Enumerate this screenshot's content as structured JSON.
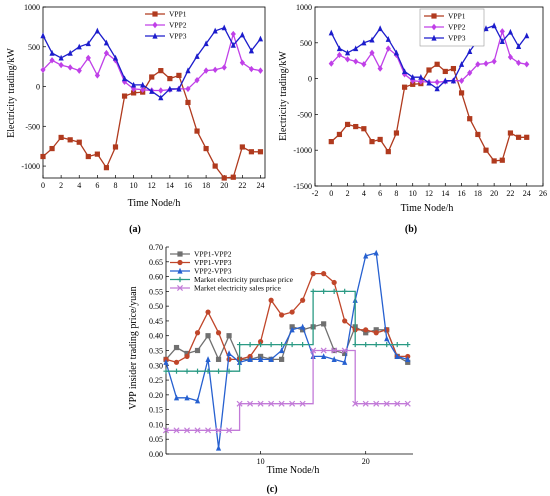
{
  "chart_data": [
    {
      "type": "line",
      "panel_label": "(a)",
      "xlabel": "Time Node/h",
      "ylabel": "Electricity trading/kW",
      "xlim": [
        0,
        24.5
      ],
      "ylim": [
        -1150,
        1000
      ],
      "xticks": [
        0,
        2,
        4,
        6,
        8,
        10,
        12,
        14,
        16,
        18,
        20,
        22,
        24
      ],
      "yticks": [
        -1000,
        -500,
        0,
        500,
        1000
      ],
      "legend_position": "top-center",
      "x": [
        0,
        1,
        2,
        3,
        4,
        5,
        6,
        7,
        8,
        9,
        10,
        11,
        12,
        13,
        14,
        15,
        16,
        17,
        18,
        19,
        20,
        21,
        22,
        23,
        24
      ],
      "series": [
        {
          "name": "VPP1",
          "color": "#b03a1e",
          "marker": "square",
          "values": [
            -880,
            -780,
            -640,
            -670,
            -700,
            -880,
            -850,
            -1020,
            -760,
            -120,
            -80,
            -70,
            120,
            200,
            100,
            140,
            -200,
            -560,
            -780,
            -1000,
            -1150,
            -1140,
            -760,
            -820,
            -820
          ]
        },
        {
          "name": "VPP2",
          "color": "#c040e8",
          "marker": "diamond",
          "values": [
            210,
            330,
            270,
            240,
            200,
            360,
            140,
            420,
            330,
            60,
            -30,
            -40,
            -50,
            -50,
            -40,
            -30,
            -30,
            80,
            200,
            210,
            240,
            660,
            300,
            220,
            200
          ]
        },
        {
          "name": "VPP3",
          "color": "#1c1ccc",
          "marker": "triangle",
          "values": [
            640,
            420,
            360,
            420,
            500,
            540,
            700,
            550,
            360,
            100,
            20,
            20,
            -60,
            -140,
            -30,
            -30,
            200,
            380,
            540,
            700,
            740,
            520,
            650,
            450,
            600
          ]
        }
      ]
    },
    {
      "type": "line",
      "panel_label": "(b)",
      "xlabel": "Time Node/h",
      "ylabel": "Electricity trading/kW",
      "xlim": [
        -2,
        26
      ],
      "ylim": [
        -1500,
        1000
      ],
      "xticks": [
        -2,
        0,
        2,
        4,
        6,
        8,
        10,
        12,
        14,
        16,
        18,
        20,
        22,
        24,
        26
      ],
      "yticks": [
        -1500,
        -1000,
        -500,
        0,
        500,
        1000
      ],
      "legend_position": "top-right",
      "x": [
        0,
        1,
        2,
        3,
        4,
        5,
        6,
        7,
        8,
        9,
        10,
        11,
        12,
        13,
        14,
        15,
        16,
        17,
        18,
        19,
        20,
        21,
        22,
        23,
        24
      ],
      "series": [
        {
          "name": "VPP1",
          "color": "#b03a1e",
          "marker": "square",
          "values": [
            -880,
            -780,
            -640,
            -670,
            -700,
            -880,
            -850,
            -1020,
            -760,
            -120,
            -80,
            -70,
            120,
            200,
            100,
            140,
            -200,
            -560,
            -780,
            -1000,
            -1150,
            -1140,
            -760,
            -820,
            -820
          ]
        },
        {
          "name": "VPP2",
          "color": "#c040e8",
          "marker": "diamond",
          "values": [
            210,
            330,
            270,
            240,
            200,
            360,
            140,
            420,
            330,
            60,
            -30,
            -40,
            -50,
            -50,
            -40,
            -30,
            -30,
            80,
            200,
            210,
            240,
            660,
            300,
            220,
            200
          ]
        },
        {
          "name": "VPP3",
          "color": "#1c1ccc",
          "marker": "triangle",
          "values": [
            640,
            420,
            360,
            420,
            500,
            540,
            700,
            550,
            360,
            100,
            20,
            20,
            -60,
            -140,
            -30,
            -30,
            200,
            380,
            540,
            700,
            740,
            520,
            650,
            450,
            600
          ]
        }
      ]
    },
    {
      "type": "line",
      "panel_label": "(c)",
      "xlabel": "Time Node/h",
      "ylabel": "VPP insider trading price/yuan",
      "xlim": [
        1,
        24.5
      ],
      "ylim": [
        0,
        0.7
      ],
      "xticks": [
        10,
        20
      ],
      "yticks": [
        "0.00",
        "0.05",
        "0.10",
        "0.15",
        "0.20",
        "0.25",
        "0.30",
        "0.35",
        "0.40",
        "0.45",
        "0.50",
        "0.55",
        "0.60",
        "0.65",
        "0.70"
      ],
      "legend_position": "top-left",
      "x": [
        1,
        2,
        3,
        4,
        5,
        6,
        7,
        8,
        9,
        10,
        11,
        12,
        13,
        14,
        15,
        16,
        17,
        18,
        19,
        20,
        21,
        22,
        23,
        24
      ],
      "series": [
        {
          "name": "VPP1-VPP2",
          "color": "#707070",
          "marker": "square",
          "values": [
            0.32,
            0.36,
            0.34,
            0.35,
            0.4,
            0.32,
            0.4,
            0.32,
            0.32,
            0.33,
            0.32,
            0.32,
            0.43,
            0.42,
            0.43,
            0.44,
            0.35,
            0.34,
            0.43,
            0.41,
            0.42,
            0.42,
            0.33,
            0.31
          ]
        },
        {
          "name": "VPP1-VPP3",
          "color": "#c0462a",
          "marker": "circle",
          "values": [
            0.32,
            0.31,
            0.33,
            0.41,
            0.48,
            0.41,
            0.32,
            0.32,
            0.33,
            0.38,
            0.52,
            0.47,
            0.48,
            0.52,
            0.61,
            0.61,
            0.58,
            0.45,
            0.42,
            0.42,
            0.41,
            0.42,
            0.33,
            0.33
          ]
        },
        {
          "name": "VPP2-VPP3",
          "color": "#2660d0",
          "marker": "triangle",
          "values": [
            0.31,
            0.19,
            0.19,
            0.18,
            0.32,
            0.02,
            0.34,
            0.31,
            0.32,
            0.32,
            0.32,
            0.35,
            0.42,
            0.43,
            0.33,
            0.33,
            0.32,
            0.31,
            0.52,
            0.67,
            0.68,
            0.39,
            0.33,
            0.32
          ]
        },
        {
          "name": "Market electricity purchase price",
          "color": "#2a9a84",
          "marker": "plus",
          "step": true,
          "values": [
            0.28,
            0.28,
            0.28,
            0.28,
            0.28,
            0.28,
            0.28,
            0.37,
            0.37,
            0.37,
            0.37,
            0.37,
            0.37,
            0.37,
            0.55,
            0.55,
            0.55,
            0.55,
            0.37,
            0.37,
            0.37,
            0.37,
            0.37,
            0.37
          ]
        },
        {
          "name": "Market electricity sales price",
          "color": "#c27ad8",
          "marker": "x",
          "step": true,
          "values": [
            0.08,
            0.08,
            0.08,
            0.08,
            0.08,
            0.08,
            0.08,
            0.17,
            0.17,
            0.17,
            0.17,
            0.17,
            0.17,
            0.17,
            0.35,
            0.35,
            0.35,
            0.35,
            0.17,
            0.17,
            0.17,
            0.17,
            0.17,
            0.17
          ]
        }
      ]
    }
  ]
}
